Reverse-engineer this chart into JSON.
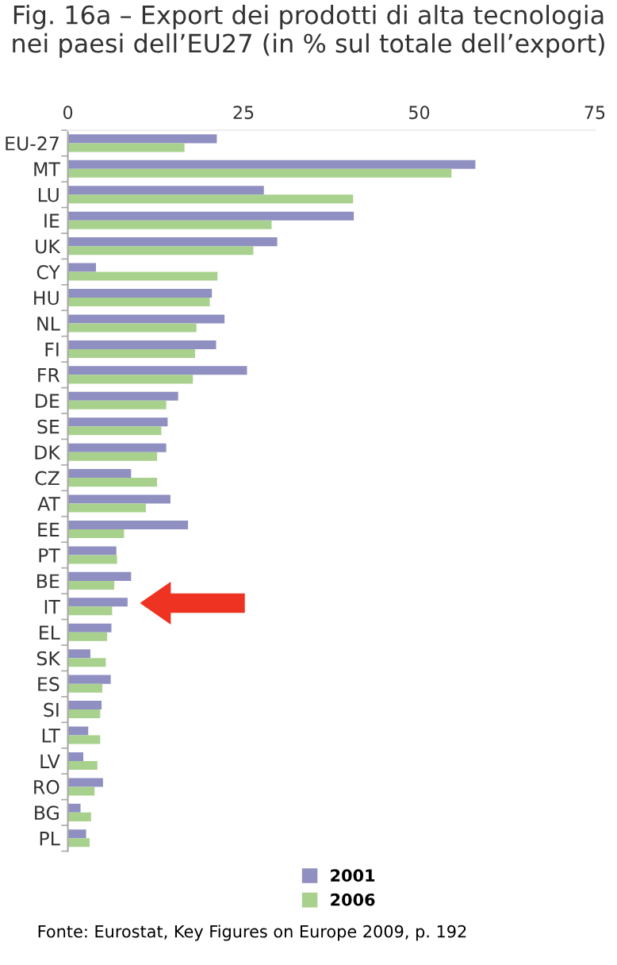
{
  "chart_data": {
    "type": "bar",
    "orientation": "horizontal",
    "title": "Fig. 16a – Export dei prodotti di alta tecnologia nei paesi dell’EU27 (in % sul totale dell’export)",
    "categories": [
      "EU-27",
      "MT",
      "LU",
      "IE",
      "UK",
      "CY",
      "HU",
      "NL",
      "FI",
      "FR",
      "DE",
      "SE",
      "DK",
      "CZ",
      "AT",
      "EE",
      "PT",
      "BE",
      "IT",
      "EL",
      "SK",
      "ES",
      "SI",
      "LT",
      "LV",
      "RO",
      "BG",
      "PL"
    ],
    "series": [
      {
        "name": "2001",
        "color": "#8f8fc2",
        "values": [
          21.2,
          58.0,
          27.9,
          40.7,
          29.8,
          4.0,
          20.5,
          22.3,
          21.1,
          25.5,
          15.7,
          14.2,
          14.0,
          9.0,
          14.6,
          17.1,
          6.9,
          9.0,
          8.5,
          6.2,
          3.2,
          6.1,
          4.8,
          2.9,
          2.2,
          5.0,
          1.8,
          2.6
        ]
      },
      {
        "name": "2006",
        "color": "#a9d18e",
        "values": [
          16.6,
          54.6,
          40.6,
          29.0,
          26.4,
          21.3,
          20.2,
          18.3,
          18.1,
          17.8,
          14.0,
          13.3,
          12.7,
          12.7,
          11.1,
          8.0,
          7.0,
          6.6,
          6.3,
          5.6,
          5.4,
          4.9,
          4.6,
          4.6,
          4.2,
          3.8,
          3.3,
          3.1
        ]
      }
    ],
    "xlim": [
      0,
      75
    ],
    "xticks": [
      0,
      25,
      50,
      75
    ],
    "grid": false,
    "legend": "bottom",
    "annotations": [
      "Fonte: Eurostat, Key Figures on Europe 2009, p. 192"
    ]
  }
}
